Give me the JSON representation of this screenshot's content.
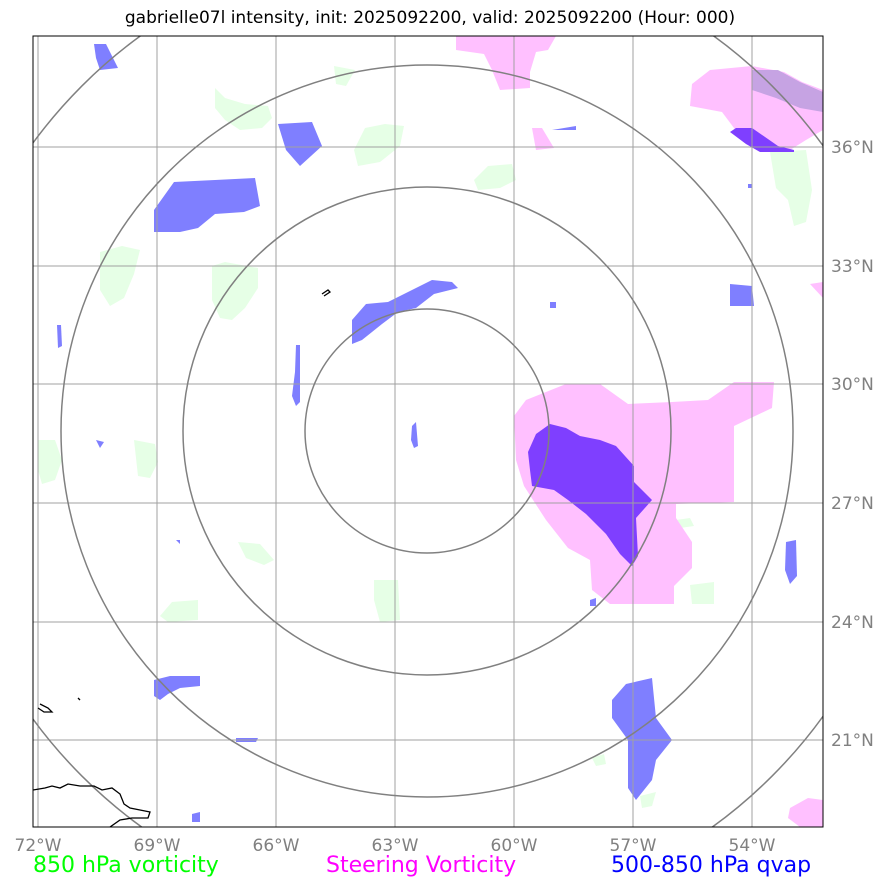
{
  "title": "gabrielle07l intensity, init: 2025092200, valid: 2025092200 (Hour: 000)",
  "map": {
    "lon_ticks": [
      "72°W",
      "69°W",
      "66°W",
      "63°W",
      "60°W",
      "57°W",
      "54°W"
    ],
    "lat_ticks": [
      "36°N",
      "33°N",
      "30°N",
      "27°N",
      "24°N",
      "21°N"
    ],
    "colors": {
      "vort850": "#e6ffe6",
      "steering": "#ffc0ff",
      "qvap": "#7f7fff",
      "overlap": "#7f3fff",
      "grid": "#a0a0a0",
      "range_rings": "#808080",
      "coast": "#000000"
    }
  },
  "legend": {
    "vort850": {
      "label": "850 hPa vorticity",
      "color": "#00ff00"
    },
    "steering": {
      "label": "Steering Vorticity",
      "color": "#ff00ff"
    },
    "qvap": {
      "label": "500-850 hPa qvap",
      "color": "#0000ff"
    }
  }
}
